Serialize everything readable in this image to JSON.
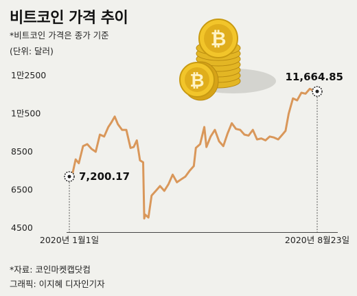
{
  "header": {
    "title": "비트코인 가격 추이",
    "subtitle": "*비트코인 가격은 종가 기준",
    "unit": "(단위: 달러)"
  },
  "footer": {
    "source": "*자료: 코인마켓캡닷컴",
    "credit": "그래픽: 이지혜 디자인기자"
  },
  "chart_data": {
    "type": "line",
    "title": "비트코인 가격 추이",
    "xlabel": "",
    "ylabel": "",
    "ylim": [
      4500,
      12500
    ],
    "yticks": [
      {
        "value": 4500,
        "label": "4500"
      },
      {
        "value": 6500,
        "label": "6500"
      },
      {
        "value": 8500,
        "label": "8500"
      },
      {
        "value": 10500,
        "label": "1만500"
      },
      {
        "value": 12500,
        "label": "1만2500"
      }
    ],
    "x_tick_labels": [
      {
        "x": "2020-01-01",
        "label": "2020년 1월1일"
      },
      {
        "x": "2020-08-23",
        "label": "2020년 8월23일"
      }
    ],
    "annotations": [
      {
        "x": "2020-01-01",
        "y": 7200.17,
        "label": "7,200.17"
      },
      {
        "x": "2020-08-23",
        "y": 11664.85,
        "label": "11,664.85"
      }
    ],
    "line_color": "#d9975a",
    "grid": false,
    "series": [
      {
        "x": [
          "2020-01-01",
          "2020-01-04",
          "2020-01-07",
          "2020-01-10",
          "2020-01-14",
          "2020-01-18",
          "2020-01-22",
          "2020-01-26",
          "2020-01-30",
          "2020-02-03",
          "2020-02-07",
          "2020-02-10",
          "2020-02-13",
          "2020-02-16",
          "2020-02-20",
          "2020-02-24",
          "2020-02-28",
          "2020-03-02",
          "2020-03-05",
          "2020-03-08",
          "2020-03-11",
          "2020-03-12",
          "2020-03-13",
          "2020-03-16",
          "2020-03-19",
          "2020-03-23",
          "2020-03-27",
          "2020-03-31",
          "2020-04-04",
          "2020-04-08",
          "2020-04-12",
          "2020-04-16",
          "2020-04-20",
          "2020-04-24",
          "2020-04-28",
          "2020-04-30",
          "2020-05-04",
          "2020-05-08",
          "2020-05-10",
          "2020-05-14",
          "2020-05-18",
          "2020-05-22",
          "2020-05-26",
          "2020-05-30",
          "2020-06-03",
          "2020-06-07",
          "2020-06-11",
          "2020-06-15",
          "2020-06-19",
          "2020-06-23",
          "2020-06-27",
          "2020-07-01",
          "2020-07-05",
          "2020-07-09",
          "2020-07-13",
          "2020-07-17",
          "2020-07-21",
          "2020-07-24",
          "2020-07-27",
          "2020-07-31",
          "2020-08-04",
          "2020-08-08",
          "2020-08-12",
          "2020-08-16",
          "2020-08-20",
          "2020-08-23"
        ],
        "values": [
          7200.17,
          7350,
          8100,
          7900,
          8800,
          8900,
          8650,
          8500,
          9400,
          9300,
          9800,
          10050,
          10350,
          9950,
          9650,
          9650,
          8700,
          8750,
          9100,
          8050,
          7950,
          5000,
          5200,
          5050,
          6200,
          6450,
          6700,
          6450,
          6800,
          7300,
          6900,
          7050,
          7200,
          7500,
          7750,
          8700,
          8900,
          9800,
          8750,
          9300,
          9650,
          9050,
          8800,
          9450,
          10000,
          9700,
          9650,
          9400,
          9350,
          9650,
          9150,
          9200,
          9100,
          9300,
          9250,
          9150,
          9400,
          9600,
          10500,
          11300,
          11200,
          11600,
          11550,
          11800,
          11700,
          11664.85
        ]
      }
    ]
  }
}
